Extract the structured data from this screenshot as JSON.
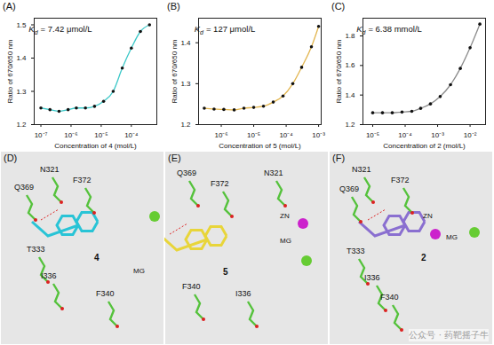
{
  "chart_data": [
    {
      "panel": "(A)",
      "type": "line",
      "marker": "circle",
      "color": "#3cc8c8",
      "log": "x",
      "annotation": {
        "symbol": "K",
        "subscript": "d",
        "text": "= 7.42 μmol/L"
      },
      "x_label": "Concentration of 4 (mol/L)",
      "y_label": "Ratio of 670/650 nm",
      "x": [
        1e-07,
        2e-07,
        4e-07,
        8e-07,
        1.5e-06,
        3e-06,
        6e-06,
        1.2e-05,
        2.5e-05,
        5e-05,
        0.0001,
        0.0002,
        0.0004
      ],
      "values": [
        1.25,
        1.245,
        1.24,
        1.245,
        1.25,
        1.25,
        1.255,
        1.27,
        1.3,
        1.37,
        1.43,
        1.48,
        1.5
      ],
      "xlim": [
        6e-08,
        0.0007
      ],
      "ylim": [
        1.2,
        1.52
      ],
      "xticks": [
        {
          "value": 1e-07,
          "label": "10⁻⁷"
        },
        {
          "value": 1e-06,
          "label": "10⁻⁶"
        },
        {
          "value": 1e-05,
          "label": "10⁻⁵"
        },
        {
          "value": 0.0001,
          "label": "10⁻⁴"
        }
      ],
      "yticks": [
        1.2,
        1.3,
        1.4,
        1.5
      ]
    },
    {
      "panel": "(B)",
      "type": "line",
      "marker": "circle",
      "color": "#e2b54e",
      "log": "x",
      "annotation": {
        "symbol": "K",
        "subscript": "d",
        "text": "= 127 μmol/L"
      },
      "x_label": "Concentration of 5 (mol/L)",
      "y_label": "Ratio of 670/650 nm",
      "x": [
        3e-07,
        6e-07,
        1.2e-06,
        2.5e-06,
        5e-06,
        1e-05,
        2e-05,
        4e-05,
        8e-05,
        0.00016,
        0.0003,
        0.0006,
        0.001
      ],
      "values": [
        1.24,
        1.238,
        1.237,
        1.236,
        1.24,
        1.242,
        1.245,
        1.255,
        1.27,
        1.3,
        1.34,
        1.39,
        1.44
      ],
      "xlim": [
        2e-07,
        0.0012
      ],
      "ylim": [
        1.2,
        1.46
      ],
      "xticks": [
        {
          "value": 1e-06,
          "label": "10⁻⁶"
        },
        {
          "value": 1e-05,
          "label": "10⁻⁵"
        },
        {
          "value": 0.0001,
          "label": "10⁻⁴"
        },
        {
          "value": 0.001,
          "label": "10⁻³"
        }
      ],
      "yticks": [
        1.2,
        1.3,
        1.4
      ]
    },
    {
      "panel": "(C)",
      "type": "line",
      "marker": "circle",
      "color": "#8a8a8a",
      "log": "x",
      "annotation": {
        "symbol": "K",
        "subscript": "d",
        "text": "= 6.38 mmol/L"
      },
      "x_label": "Concentration of 2 (mol/L)",
      "y_label": "Ratio of 670/650 nm",
      "x": [
        1e-05,
        2e-05,
        4e-05,
        8e-05,
        0.00016,
        0.0003,
        0.0006,
        0.0012,
        0.0025,
        0.005,
        0.01,
        0.02
      ],
      "values": [
        1.28,
        1.28,
        1.28,
        1.285,
        1.29,
        1.31,
        1.34,
        1.39,
        1.47,
        1.58,
        1.72,
        1.88
      ],
      "xlim": [
        5e-06,
        0.03
      ],
      "ylim": [
        1.2,
        1.92
      ],
      "xticks": [
        {
          "value": 1e-05,
          "label": "10⁻⁵"
        },
        {
          "value": 0.0001,
          "label": "10⁻⁴"
        },
        {
          "value": 0.001,
          "label": "10⁻³"
        },
        {
          "value": 0.01,
          "label": "10⁻²"
        }
      ],
      "yticks": [
        1.2,
        1.4,
        1.6,
        1.8
      ]
    }
  ],
  "structures": [
    {
      "panel": "(D)",
      "ligand": "4",
      "residues": [
        "N321",
        "Q369",
        "F372",
        "T333",
        "I336",
        "F340"
      ],
      "ions": [
        "MG"
      ]
    },
    {
      "panel": "(E)",
      "ligand": "5",
      "residues": [
        "Q369",
        "F372",
        "N321",
        "F340",
        "I336"
      ],
      "ions": [
        "ZN",
        "MG"
      ]
    },
    {
      "panel": "(F)",
      "ligand": "2",
      "residues": [
        "N321",
        "Q369",
        "F372",
        "T333",
        "I336",
        "F340"
      ],
      "ions": [
        "ZN",
        "MG"
      ]
    }
  ],
  "watermark": "公众号 · 药靶摇子牛"
}
